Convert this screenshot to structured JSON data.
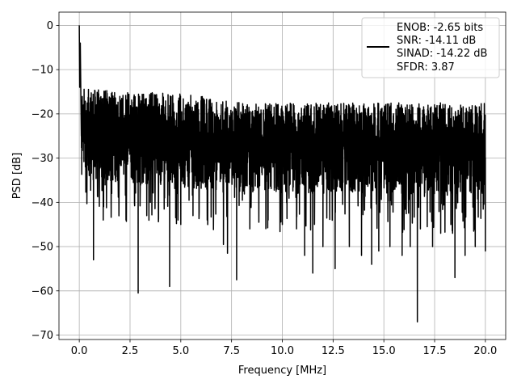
{
  "chart_data": {
    "type": "line",
    "title": "",
    "xlabel": "Frequency [MHz]",
    "ylabel": "PSD [dB]",
    "xlim": [
      -1.0,
      21.0
    ],
    "ylim": [
      -71.0,
      3.0
    ],
    "x_ticks": [
      0.0,
      2.5,
      5.0,
      7.5,
      10.0,
      12.5,
      15.0,
      17.5,
      20.0
    ],
    "x_tick_labels": [
      "0.0",
      "2.5",
      "5.0",
      "7.5",
      "10.0",
      "12.5",
      "15.0",
      "17.5",
      "20.0"
    ],
    "y_ticks": [
      0,
      -10,
      -20,
      -30,
      -40,
      -50,
      -60,
      -70
    ],
    "y_tick_labels": [
      "0",
      "−10",
      "−20",
      "−30",
      "−40",
      "−50",
      "−60",
      "−70"
    ],
    "grid": true,
    "legend_position": "top-right",
    "legend_lines": [
      "ENOB: -2.65 bits",
      "SNR: -14.11 dB",
      "SINAD: -14.22 dB",
      "SFDR: 3.87"
    ],
    "series": [
      {
        "color": "#000000",
        "x": [
          0.0,
          0.02,
          0.05,
          0.1,
          0.2,
          0.3,
          0.7,
          1.2,
          1.6,
          2.3,
          2.9,
          3.5,
          4.2,
          4.45,
          5.0,
          5.6,
          6.3,
          7.1,
          7.3,
          7.75,
          8.4,
          9.3,
          10.0,
          10.7,
          11.1,
          11.5,
          12.0,
          12.6,
          13.3,
          13.9,
          14.4,
          14.75,
          15.3,
          15.9,
          16.3,
          16.65,
          16.8,
          17.4,
          17.8,
          18.3,
          18.5,
          19.0,
          19.5,
          20.0
        ],
        "y": [
          0.0,
          -14.0,
          -4.0,
          -25.0,
          -18.0,
          -32.0,
          -53.0,
          -41.0,
          -38.0,
          -44.0,
          -60.5,
          -40.0,
          -39.0,
          -59.0,
          -45.0,
          -43.0,
          -44.0,
          -49.5,
          -51.5,
          -57.5,
          -46.0,
          -44.0,
          -45.0,
          -46.0,
          -52.0,
          -56.0,
          -50.0,
          -55.0,
          -50.0,
          -52.0,
          -54.0,
          -51.0,
          -50.0,
          -52.0,
          -50.0,
          -67.0,
          -46.0,
          -50.0,
          -47.0,
          -45.0,
          -57.0,
          -52.0,
          -50.0,
          -51.0
        ]
      }
    ],
    "noise_band": {
      "x": [
        0.1,
        0.5,
        1.0,
        2.0,
        3.0,
        4.0,
        5.0,
        6.0,
        7.0,
        8.0,
        9.0,
        10.0,
        11.0,
        12.0,
        13.0,
        14.0,
        15.0,
        16.0,
        17.0,
        18.0,
        19.0,
        20.0
      ],
      "upper": [
        -14.0,
        -14.5,
        -14.5,
        -15.0,
        -14.5,
        -15.0,
        -15.5,
        -16.0,
        -17.0,
        -17.5,
        -17.5,
        -17.5,
        -17.5,
        -17.5,
        -17.5,
        -17.5,
        -17.5,
        -17.5,
        -17.5,
        -17.5,
        -17.5,
        -17.5
      ],
      "lower": [
        -36.0,
        -35.0,
        -35.0,
        -35.5,
        -36.0,
        -36.0,
        -36.5,
        -37.0,
        -37.5,
        -37.5,
        -38.0,
        -38.0,
        -38.0,
        -38.0,
        -38.0,
        -38.0,
        -38.0,
        -38.0,
        -38.0,
        -38.0,
        -38.0,
        -38.0
      ]
    }
  }
}
